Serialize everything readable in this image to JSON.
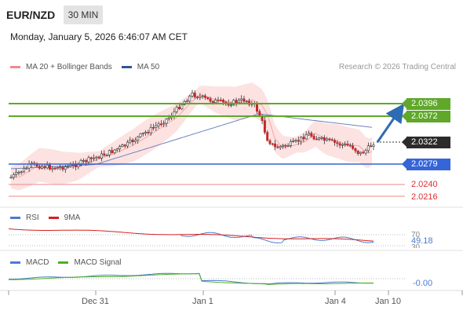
{
  "header": {
    "pair": "EUR/NZD",
    "timeframe": "30 MIN",
    "datetime": "Monday, January 5, 2026 6:46:07 AM CET"
  },
  "main_legend": [
    {
      "label": "MA 20 + Bollinger Bands",
      "color": "#f08a8a"
    },
    {
      "label": "MA 50",
      "color": "#2f5597"
    }
  ],
  "copyright": "Research © 2026 Trading Central",
  "levels": {
    "resistance_2": "2.0396",
    "resistance_1": "2.0372",
    "current": "2.0322",
    "pivot": "2.0279",
    "support_1": "2.0240",
    "support_2": "2.0216"
  },
  "colors": {
    "resistance": "#5fa82a",
    "pivot": "#3565d6",
    "support": "#e05a5a",
    "current": "#2b2b2b",
    "candle": "#c62828",
    "ma50": "#2f5597",
    "bollinger_fill": "#fde2e2",
    "arrow": "#2e6bb3"
  },
  "rsi": {
    "legend": [
      {
        "label": "RSI",
        "color": "#4a7ccf"
      },
      {
        "label": "9MA",
        "color": "#d62020"
      }
    ],
    "level_high": "70",
    "level_low": "30",
    "value": "49.18"
  },
  "macd": {
    "legend": [
      {
        "label": "MACD",
        "color": "#4a7ccf"
      },
      {
        "label": "MACD Signal",
        "color": "#4caf28"
      }
    ],
    "value": "-0.00"
  },
  "x_axis": {
    "labels": [
      "Dec 31",
      "Jan 1",
      "Jan 4",
      "Jan 10"
    ]
  }
}
